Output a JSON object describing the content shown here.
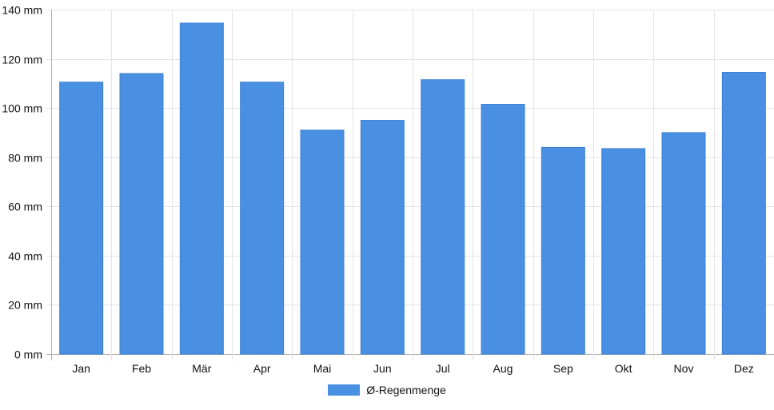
{
  "chart_data": {
    "type": "bar",
    "title": "",
    "xlabel": "",
    "ylabel": "",
    "categories": [
      "Jan",
      "Feb",
      "Mär",
      "Apr",
      "Mai",
      "Jun",
      "Jul",
      "Aug",
      "Sep",
      "Okt",
      "Nov",
      "Dez"
    ],
    "series": [
      {
        "name": "Ø-Regenmenge",
        "color": "#4a90e2",
        "values": [
          110.5,
          114,
          134.5,
          110.5,
          91,
          95,
          111.5,
          101.5,
          84,
          83.5,
          90,
          114.5
        ]
      }
    ],
    "ylim": [
      0,
      140
    ],
    "yticks": [
      0,
      20,
      40,
      60,
      80,
      100,
      120,
      140
    ],
    "ytick_suffix": " mm",
    "grid": true,
    "legend_position": "bottom"
  }
}
